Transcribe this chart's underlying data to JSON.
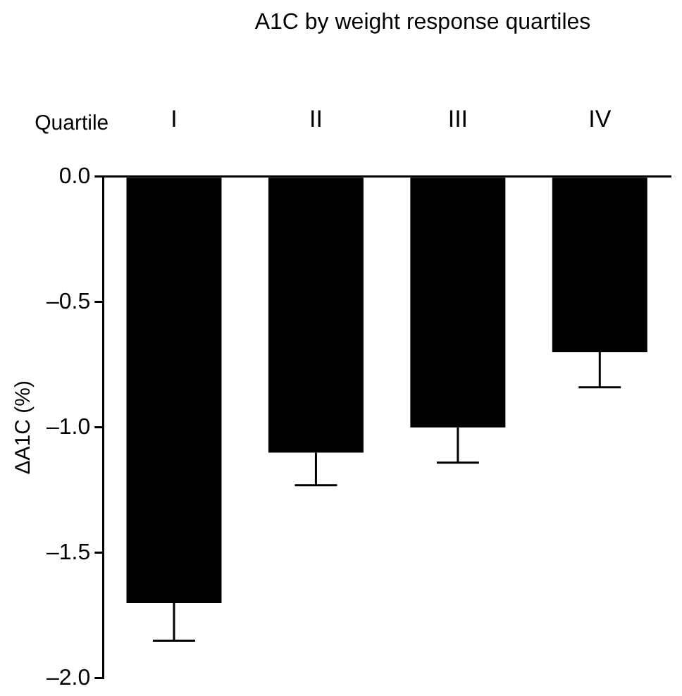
{
  "chart_data": {
    "type": "bar",
    "title": "A1C by weight response quartiles",
    "xlabel": "Quartile",
    "ylabel": "ΔA1C (%)",
    "categories": [
      "I",
      "II",
      "III",
      "IV"
    ],
    "values": [
      -1.7,
      -1.1,
      -1.0,
      -0.7
    ],
    "errors": [
      [
        -1.85,
        -1.7
      ],
      [
        -1.23,
        -1.1
      ],
      [
        -1.14,
        -1.0
      ],
      [
        -0.84,
        -0.7
      ]
    ],
    "color": "#000000",
    "ylim": [
      -2,
      0
    ],
    "yticks": [
      {
        "value": -2,
        "label": "–2.0"
      },
      {
        "value": -1.5,
        "label": "–1.5"
      },
      {
        "value": -1,
        "label": "–1.0"
      },
      {
        "value": -0.5,
        "label": "–0.5"
      },
      {
        "value": 0,
        "label": "0.0"
      }
    ],
    "legend": false
  }
}
